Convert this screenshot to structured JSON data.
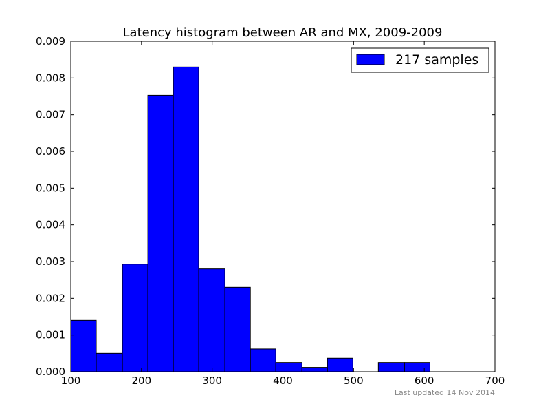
{
  "chart_data": {
    "type": "bar",
    "title": "Latency histogram between AR and MX, 2009-2009",
    "xlabel": "",
    "ylabel": "",
    "xlim": [
      100,
      700
    ],
    "ylim": [
      0,
      0.009
    ],
    "x_ticks": [
      "100",
      "200",
      "300",
      "400",
      "500",
      "600",
      "700"
    ],
    "y_ticks": [
      "0.000",
      "0.001",
      "0.002",
      "0.003",
      "0.004",
      "0.005",
      "0.006",
      "0.007",
      "0.008",
      "0.009"
    ],
    "bins": [
      {
        "start": 100,
        "end": 136,
        "value": 0.0014
      },
      {
        "start": 136,
        "end": 173,
        "value": 0.0005
      },
      {
        "start": 173,
        "end": 209,
        "value": 0.00293
      },
      {
        "start": 209,
        "end": 245,
        "value": 0.00753
      },
      {
        "start": 245,
        "end": 281,
        "value": 0.0083
      },
      {
        "start": 281,
        "end": 318,
        "value": 0.0028
      },
      {
        "start": 318,
        "end": 354,
        "value": 0.0023
      },
      {
        "start": 354,
        "end": 390,
        "value": 0.00062
      },
      {
        "start": 390,
        "end": 427,
        "value": 0.00025
      },
      {
        "start": 427,
        "end": 463,
        "value": 0.00012
      },
      {
        "start": 463,
        "end": 499,
        "value": 0.00037
      },
      {
        "start": 499,
        "end": 535,
        "value": 0
      },
      {
        "start": 535,
        "end": 572,
        "value": 0.00025
      },
      {
        "start": 572,
        "end": 608,
        "value": 0.00025
      }
    ],
    "series": [
      {
        "name": "217 samples",
        "color": "#0000ff"
      }
    ],
    "legend_position": "top-right",
    "grid": false
  },
  "footnote": "Last updated 14 Nov 2014"
}
